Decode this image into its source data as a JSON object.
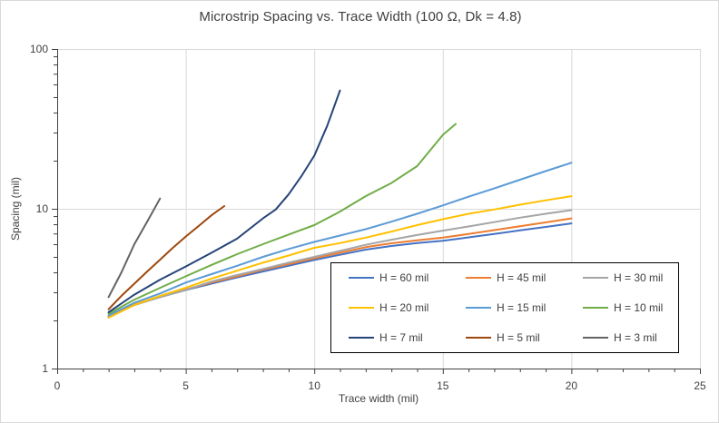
{
  "chart_data": {
    "type": "line",
    "title": "Microstrip Spacing vs. Trace Width (100 Ω, Dk = 4.8)",
    "xlabel": "Trace width (mil)",
    "ylabel": "Spacing (mil)",
    "xlim": [
      0,
      25
    ],
    "ylim": [
      1,
      100
    ],
    "yscale": "log",
    "x_major_ticks": [
      0,
      5,
      10,
      15,
      20,
      25
    ],
    "x_tick_labels": [
      "0",
      "5",
      "10",
      "15",
      "20",
      "25"
    ],
    "x_minor_ticks": [
      1,
      2,
      3,
      4,
      6,
      7,
      8,
      9,
      11,
      12,
      13,
      14,
      16,
      17,
      18,
      19,
      21,
      22,
      23,
      24
    ],
    "y_major_ticks": [
      1,
      10,
      100
    ],
    "y_tick_labels": [
      "1",
      "10",
      "100"
    ],
    "y_minor_ticks": [
      2,
      3,
      4,
      5,
      6,
      7,
      8,
      9,
      20,
      30,
      40,
      50,
      60,
      70,
      80,
      90
    ],
    "grid_x": [
      5,
      10,
      15,
      20,
      25
    ],
    "grid_y": [
      10,
      100
    ],
    "grid_on": true,
    "legend_position": "inside-bottom-right",
    "colors": {
      "gridline": "#d9d9d9",
      "axis": "#404040",
      "text": "#404040"
    },
    "series": [
      {
        "name": "H = 60 mil",
        "color": "#4472C4",
        "points": [
          [
            2,
            2.1
          ],
          [
            3,
            2.5
          ],
          [
            4,
            2.8
          ],
          [
            5,
            3.1
          ],
          [
            6,
            3.4
          ],
          [
            7,
            3.72
          ],
          [
            8,
            4.05
          ],
          [
            9,
            4.4
          ],
          [
            10,
            4.78
          ],
          [
            11,
            5.15
          ],
          [
            12,
            5.55
          ],
          [
            13,
            5.85
          ],
          [
            14,
            6.1
          ],
          [
            15,
            6.3
          ],
          [
            16,
            6.62
          ],
          [
            17,
            6.95
          ],
          [
            18,
            7.32
          ],
          [
            19,
            7.7
          ],
          [
            20,
            8.1
          ]
        ]
      },
      {
        "name": "H = 45 mil",
        "color": "#ED7D31",
        "points": [
          [
            2,
            2.12
          ],
          [
            3,
            2.52
          ],
          [
            4,
            2.83
          ],
          [
            5,
            3.12
          ],
          [
            6,
            3.45
          ],
          [
            7,
            3.78
          ],
          [
            8,
            4.15
          ],
          [
            9,
            4.5
          ],
          [
            10,
            4.9
          ],
          [
            11,
            5.3
          ],
          [
            12,
            5.75
          ],
          [
            13,
            6.08
          ],
          [
            14,
            6.35
          ],
          [
            15,
            6.6
          ],
          [
            16,
            6.95
          ],
          [
            17,
            7.35
          ],
          [
            18,
            7.78
          ],
          [
            19,
            8.22
          ],
          [
            20,
            8.7
          ]
        ]
      },
      {
        "name": "H = 30 mil",
        "color": "#A5A5A5",
        "points": [
          [
            2,
            2.1
          ],
          [
            3,
            2.5
          ],
          [
            4,
            2.8
          ],
          [
            5,
            3.1
          ],
          [
            6,
            3.5
          ],
          [
            7,
            3.85
          ],
          [
            8,
            4.2
          ],
          [
            9,
            4.6
          ],
          [
            10,
            5.0
          ],
          [
            11,
            5.45
          ],
          [
            12,
            5.95
          ],
          [
            13,
            6.4
          ],
          [
            14,
            6.85
          ],
          [
            15,
            7.3
          ],
          [
            16,
            7.75
          ],
          [
            17,
            8.25
          ],
          [
            18,
            8.8
          ],
          [
            19,
            9.3
          ],
          [
            20,
            9.8
          ]
        ]
      },
      {
        "name": "H = 20 mil",
        "color": "#FFC000",
        "points": [
          [
            2,
            2.08
          ],
          [
            3,
            2.5
          ],
          [
            4,
            2.85
          ],
          [
            5,
            3.2
          ],
          [
            6,
            3.65
          ],
          [
            7,
            4.1
          ],
          [
            8,
            4.6
          ],
          [
            9,
            5.1
          ],
          [
            10,
            5.7
          ],
          [
            11,
            6.1
          ],
          [
            12,
            6.6
          ],
          [
            13,
            7.2
          ],
          [
            14,
            7.9
          ],
          [
            15,
            8.6
          ],
          [
            16,
            9.3
          ],
          [
            17,
            9.9
          ],
          [
            18,
            10.6
          ],
          [
            19,
            11.3
          ],
          [
            20,
            12.0
          ]
        ]
      },
      {
        "name": "H = 15 mil",
        "color": "#5B9BD5",
        "points": [
          [
            2,
            2.15
          ],
          [
            3,
            2.58
          ],
          [
            4,
            2.95
          ],
          [
            5,
            3.45
          ],
          [
            6,
            3.9
          ],
          [
            7,
            4.4
          ],
          [
            8,
            5.0
          ],
          [
            9,
            5.6
          ],
          [
            10,
            6.2
          ],
          [
            11,
            6.8
          ],
          [
            12,
            7.45
          ],
          [
            13,
            8.3
          ],
          [
            14,
            9.3
          ],
          [
            15,
            10.5
          ],
          [
            16,
            11.9
          ],
          [
            17,
            13.4
          ],
          [
            18,
            15.2
          ],
          [
            19,
            17.2
          ],
          [
            20,
            19.4
          ]
        ]
      },
      {
        "name": "H = 10 mil",
        "color": "#70AD47",
        "points": [
          [
            2,
            2.2
          ],
          [
            3,
            2.7
          ],
          [
            4,
            3.2
          ],
          [
            5,
            3.78
          ],
          [
            6,
            4.45
          ],
          [
            7,
            5.2
          ],
          [
            8,
            6.0
          ],
          [
            9,
            6.9
          ],
          [
            10,
            7.9
          ],
          [
            11,
            9.6
          ],
          [
            12,
            12.0
          ],
          [
            13,
            14.5
          ],
          [
            14,
            18.5
          ],
          [
            15,
            29.0
          ],
          [
            15.5,
            34.0
          ]
        ]
      },
      {
        "name": "H = 7 mil",
        "color": "#264478",
        "points": [
          [
            2,
            2.25
          ],
          [
            3,
            2.9
          ],
          [
            4,
            3.6
          ],
          [
            5,
            4.35
          ],
          [
            6,
            5.3
          ],
          [
            7,
            6.5
          ],
          [
            8,
            8.7
          ],
          [
            8.5,
            9.9
          ],
          [
            9,
            12.3
          ],
          [
            9.5,
            16.0
          ],
          [
            10,
            21.5
          ],
          [
            10.5,
            33.0
          ],
          [
            11,
            55.0
          ]
        ]
      },
      {
        "name": "H = 5 mil",
        "color": "#9E480E",
        "points": [
          [
            2,
            2.35
          ],
          [
            2.5,
            2.85
          ],
          [
            3,
            3.4
          ],
          [
            3.5,
            4.05
          ],
          [
            4,
            4.8
          ],
          [
            4.5,
            5.7
          ],
          [
            5,
            6.7
          ],
          [
            5.5,
            7.8
          ],
          [
            6,
            9.1
          ],
          [
            6.5,
            10.4
          ]
        ]
      },
      {
        "name": "H = 3 mil",
        "color": "#636363",
        "points": [
          [
            2,
            2.8
          ],
          [
            2.5,
            4.0
          ],
          [
            3,
            6.0
          ],
          [
            3.5,
            8.3
          ],
          [
            4,
            11.6
          ]
        ]
      }
    ]
  }
}
